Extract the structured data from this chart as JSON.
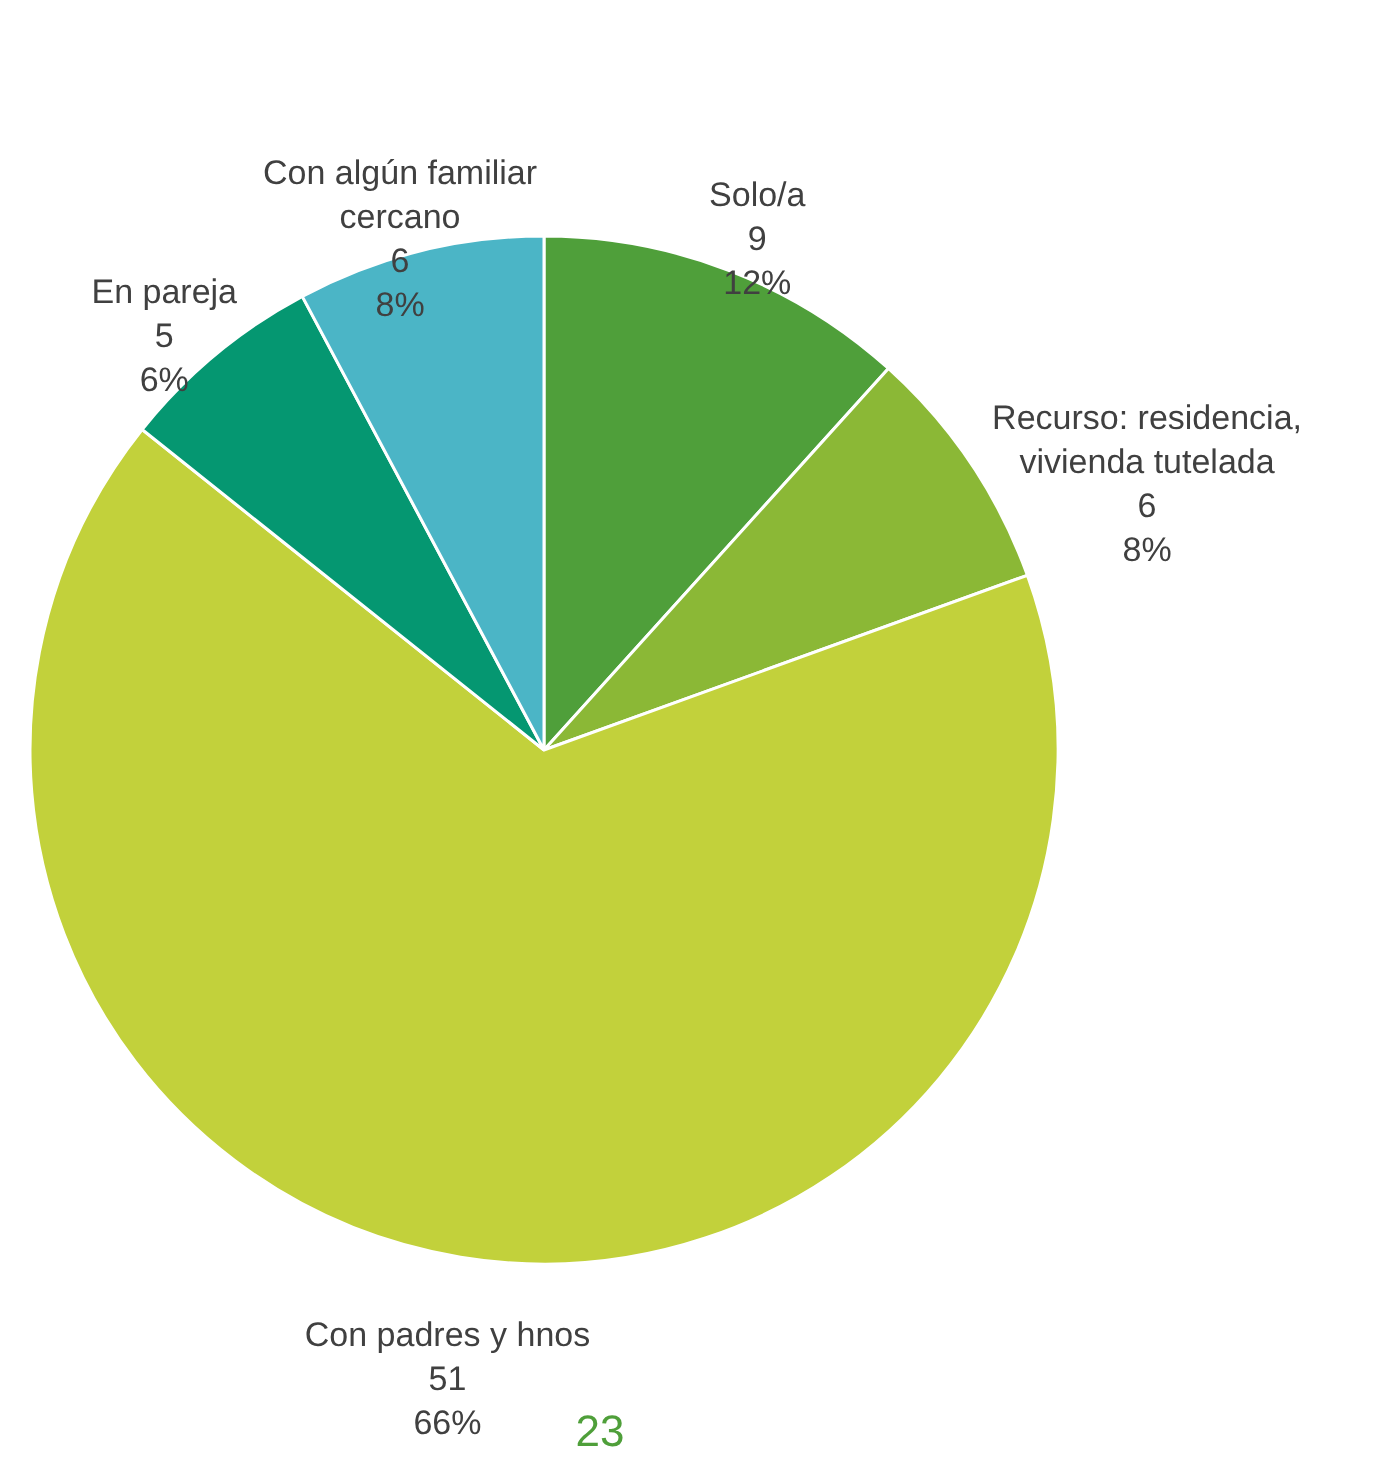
{
  "chart_data": {
    "type": "pie",
    "categories": [
      "Solo/a",
      "Recurso: residencia, vivienda tutelada",
      "Con padres y hnos",
      "En pareja",
      "Con algún familiar cercano"
    ],
    "values": [
      9,
      6,
      51,
      5,
      6
    ],
    "value_labels": [
      "9\n12%",
      "6\n8%",
      "51\n66%",
      "5\n6%",
      "6\n8%"
    ],
    "colors": [
      "#4f9f3a",
      "#8bb836",
      "#c2d13b",
      "#059771",
      "#4bb5c6"
    ],
    "annotations": [
      "23"
    ]
  }
}
